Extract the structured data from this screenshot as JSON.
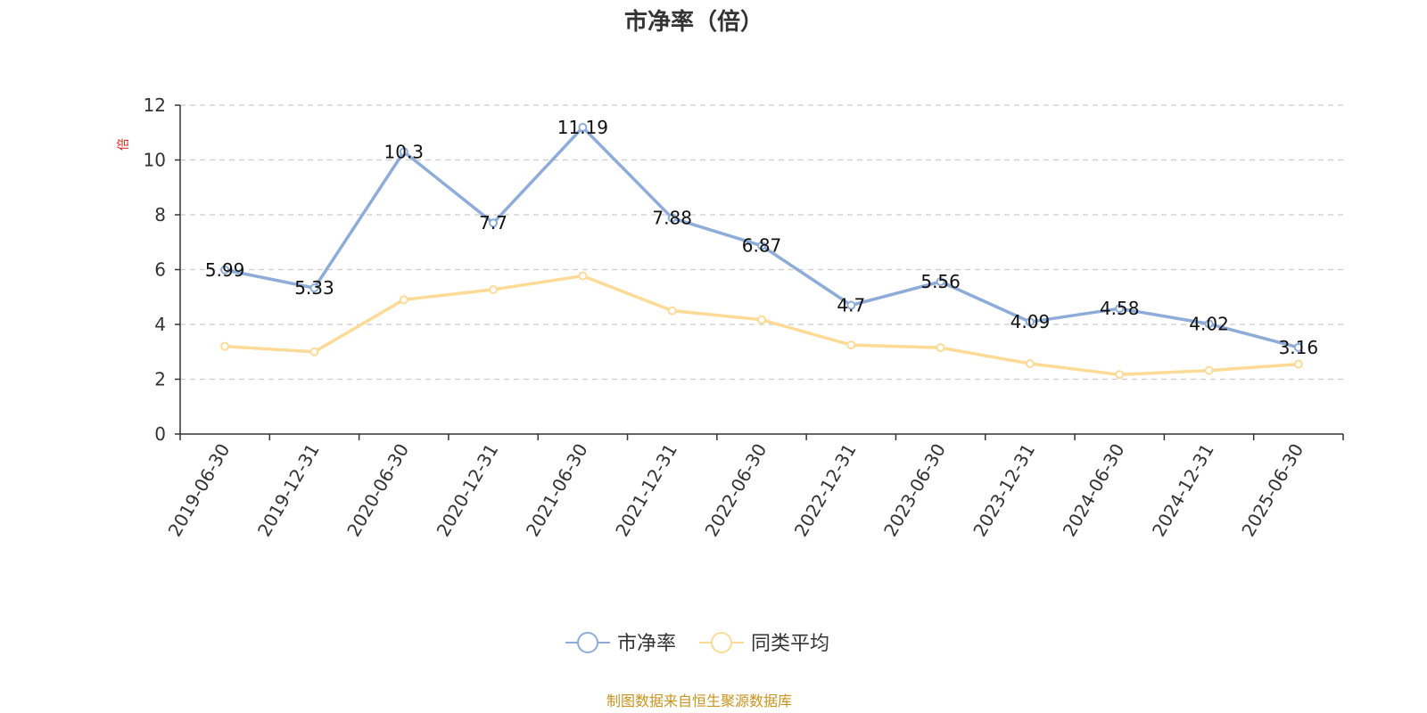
{
  "chart_data": {
    "type": "line",
    "title": "市净率（倍）",
    "ylabel": "倍",
    "ylim": [
      0,
      12
    ],
    "yticks": [
      0,
      2,
      4,
      6,
      8,
      10,
      12
    ],
    "grid": true,
    "legend_position": "bottom",
    "categories": [
      "2019-06-30",
      "2019-12-31",
      "2020-06-30",
      "2020-12-31",
      "2021-06-30",
      "2021-12-31",
      "2022-06-30",
      "2022-12-31",
      "2023-06-30",
      "2023-12-31",
      "2024-06-30",
      "2024-12-31",
      "2025-06-30"
    ],
    "series": [
      {
        "name": "市净率",
        "color": "#8eacd9",
        "values": [
          5.99,
          5.33,
          10.3,
          7.7,
          11.19,
          7.88,
          6.87,
          4.7,
          5.56,
          4.09,
          4.58,
          4.02,
          3.16
        ],
        "labels": [
          "5.99",
          "5.33",
          "10.3",
          "7.7",
          "11.19",
          "7.88",
          "6.87",
          "4.7",
          "5.56",
          "4.09",
          "4.58",
          "4.02",
          "3.16"
        ]
      },
      {
        "name": "同类平均",
        "color": "#fddb96",
        "values": [
          3.2,
          3.0,
          4.9,
          5.27,
          5.77,
          4.5,
          4.17,
          3.25,
          3.15,
          2.57,
          2.17,
          2.32,
          2.55
        ]
      }
    ],
    "source_text": "制图数据来自恒生聚源数据库",
    "colors": {
      "ylabel": "#e0201e",
      "source": "#c8941e",
      "axis": "#333333",
      "grid": "#cccccc"
    }
  }
}
